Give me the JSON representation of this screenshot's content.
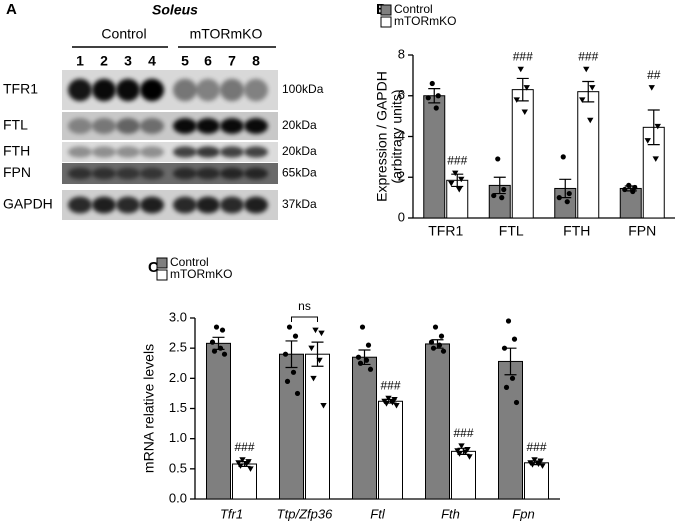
{
  "blot": {
    "panel": "A",
    "title": "Soleus",
    "groups": [
      "Control",
      "mTORmKO"
    ],
    "lanes": [
      1,
      2,
      3,
      4,
      5,
      6,
      7,
      8
    ],
    "rows": [
      {
        "protein": "TFR1",
        "size": "100kDa"
      },
      {
        "protein": "FTL",
        "size": "20kDa"
      },
      {
        "protein": "FTH",
        "size": "20kDa"
      },
      {
        "protein": "FPN",
        "size": "65kDa"
      },
      {
        "protein": "GAPDH",
        "size": "37kDa"
      }
    ]
  },
  "chart_data": [
    {
      "type": "bar",
      "panel": "B",
      "ylabel": [
        "Expression / GAPDH",
        "(arbitrary units)"
      ],
      "categories": [
        "TFR1",
        "FTL",
        "FTH",
        "FPN"
      ],
      "ylim": [
        0,
        8
      ],
      "yticks": [
        0,
        2,
        4,
        6,
        8
      ],
      "series": [
        {
          "name": "Control",
          "color": "#7f7f7f",
          "marker": "circle",
          "values": [
            6.0,
            1.6,
            1.45,
            1.45
          ],
          "errors": [
            0.35,
            0.4,
            0.45,
            0.12
          ],
          "points": [
            [
              6.6,
              6.0,
              5.9,
              5.4
            ],
            [
              2.9,
              1.4,
              1.1,
              1.0
            ],
            [
              3.0,
              1.2,
              1.0,
              0.8
            ],
            [
              1.6,
              1.5,
              1.4,
              1.3
            ]
          ]
        },
        {
          "name": "mTORmKO",
          "color": "#ffffff",
          "marker": "triangle",
          "values": [
            1.85,
            6.3,
            6.2,
            4.45
          ],
          "errors": [
            0.3,
            0.55,
            0.5,
            0.85
          ],
          "points": [
            [
              2.2,
              1.9,
              1.7,
              1.4
            ],
            [
              7.3,
              6.4,
              5.8,
              5.2
            ],
            [
              7.3,
              6.4,
              5.8,
              4.8
            ],
            [
              6.4,
              4.5,
              3.8,
              2.9
            ]
          ],
          "significance": [
            "###",
            "###",
            "###",
            "##"
          ]
        }
      ]
    },
    {
      "type": "bar",
      "panel": "C",
      "ylabel": [
        "mRNA relative levels"
      ],
      "categories": [
        "Tfr1",
        "Ttp/Zfp36",
        "Ftl",
        "Fth",
        "Fpn"
      ],
      "ylim": [
        0,
        3
      ],
      "yticks": [
        {
          "value": 0,
          "label": "0.0"
        },
        0.5,
        {
          "value": 1,
          "label": "1.0"
        },
        1.5,
        {
          "value": 2,
          "label": "2.0"
        },
        2.5,
        {
          "value": 3,
          "label": "3.0"
        }
      ],
      "series": [
        {
          "name": "Control",
          "color": "#7f7f7f",
          "marker": "circle",
          "values": [
            2.58,
            2.4,
            2.35,
            2.57,
            2.28
          ],
          "errors": [
            0.1,
            0.22,
            0.12,
            0.07,
            0.22
          ],
          "points": [
            [
              2.85,
              2.8,
              2.6,
              2.5,
              2.45,
              2.4
            ],
            [
              2.85,
              2.7,
              2.4,
              2.1,
              1.95,
              1.75
            ],
            [
              2.85,
              2.55,
              2.35,
              2.3,
              2.25,
              2.15
            ],
            [
              2.85,
              2.7,
              2.6,
              2.55,
              2.5,
              2.45
            ],
            [
              2.95,
              2.65,
              2.5,
              2.0,
              1.85,
              1.6
            ]
          ]
        },
        {
          "name": "mTORmKO",
          "color": "#ffffff",
          "marker": "triangle",
          "values": [
            0.58,
            2.4,
            1.62,
            0.79,
            0.6
          ],
          "errors": [
            0.04,
            0.2,
            0.03,
            0.05,
            0.03
          ],
          "points": [
            [
              0.65,
              0.62,
              0.6,
              0.58,
              0.55,
              0.5
            ],
            [
              2.8,
              2.75,
              2.5,
              2.3,
              2.0,
              1.55
            ],
            [
              1.67,
              1.65,
              1.62,
              1.6,
              1.58,
              1.55
            ],
            [
              0.88,
              0.82,
              0.8,
              0.78,
              0.75,
              0.7
            ],
            [
              0.65,
              0.63,
              0.6,
              0.58,
              0.57,
              0.55
            ]
          ],
          "significance": [
            "###",
            null,
            "###",
            "###",
            "###"
          ]
        }
      ],
      "annotations": [
        {
          "text": "ns",
          "category": 1
        }
      ]
    }
  ]
}
